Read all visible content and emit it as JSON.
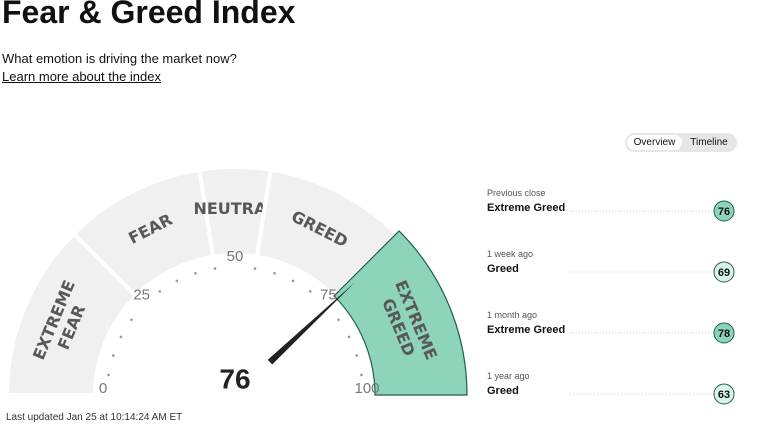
{
  "header": {
    "title": "Fear & Greed Index",
    "subtitle": "What emotion is driving the market now?",
    "link": "Learn more about the index"
  },
  "tabs": [
    "Overview",
    "Timeline"
  ],
  "chart_data": {
    "type": "gauge",
    "value": 76,
    "xlim": [
      0,
      100
    ],
    "xticks": [
      0,
      25,
      50,
      75,
      100
    ],
    "bands": [
      {
        "label": [
          "EXTREME",
          "FEAR"
        ],
        "from": 0,
        "to": 25
      },
      {
        "label": [
          "FEAR"
        ],
        "from": 25,
        "to": 45
      },
      {
        "label": [
          "NEUTRAL"
        ],
        "from": 45,
        "to": 55
      },
      {
        "label": [
          "GREED"
        ],
        "from": 55,
        "to": 75
      },
      {
        "label": [
          "EXTREME",
          "GREED"
        ],
        "from": 75,
        "to": 100
      }
    ],
    "band_color": "#f0f0f0",
    "active_color": "#8dd4bb"
  },
  "history": [
    {
      "label": "Previous close",
      "rating": "Extreme Greed",
      "value": 76,
      "color": "#8dd4bb"
    },
    {
      "label": "1 week ago",
      "rating": "Greed",
      "value": 69,
      "color": "#d8f3ea"
    },
    {
      "label": "1 month ago",
      "rating": "Extreme Greed",
      "value": 78,
      "color": "#8dd4bb"
    },
    {
      "label": "1 year ago",
      "rating": "Greed",
      "value": 63,
      "color": "#d8f3ea"
    }
  ],
  "footer": "Last updated Jan 25 at 10:14:24 AM ET"
}
